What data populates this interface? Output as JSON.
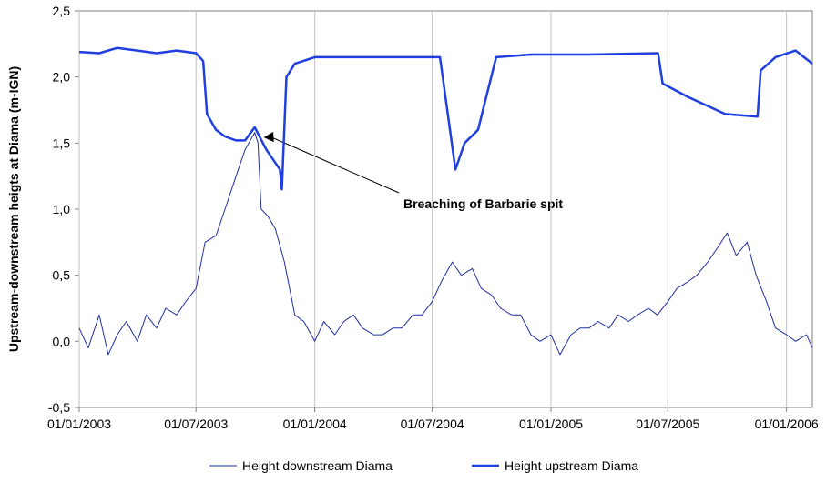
{
  "chart_data": {
    "type": "line",
    "y_label": "Upstream-downstream heigts at Diama (m-IGN)",
    "annotation": "Breaching of Barbarie spit",
    "xlim": [
      "2003-01-01",
      "2006-02-10"
    ],
    "xticks": [
      {
        "value": "2003-01-01",
        "label": "01/01/2003"
      },
      {
        "value": "2003-07-01",
        "label": "01/07/2003"
      },
      {
        "value": "2004-01-01",
        "label": "01/01/2004"
      },
      {
        "value": "2004-07-01",
        "label": "01/07/2004"
      },
      {
        "value": "2005-01-01",
        "label": "01/01/2005"
      },
      {
        "value": "2005-07-01",
        "label": "01/07/2005"
      },
      {
        "value": "2006-01-01",
        "label": "01/01/2006"
      }
    ],
    "ylim": [
      -0.5,
      2.5
    ],
    "yticks": [
      {
        "value": -0.5,
        "label": "-0,5"
      },
      {
        "value": 0,
        "label": "0,0"
      },
      {
        "value": 0.5,
        "label": "0,5"
      },
      {
        "value": 1,
        "label": "1,0"
      },
      {
        "value": 1.5,
        "label": "1,5"
      },
      {
        "value": 2,
        "label": "2,0"
      },
      {
        "value": 2.5,
        "label": "2,5"
      }
    ],
    "grid": true,
    "series": [
      {
        "name": "Height downstream Diama",
        "color": "#1f2fa0",
        "width": 1,
        "x": [
          "2003-01-01",
          "2003-01-15",
          "2003-02-01",
          "2003-02-15",
          "2003-03-01",
          "2003-03-15",
          "2003-04-01",
          "2003-04-15",
          "2003-05-01",
          "2003-05-15",
          "2003-06-01",
          "2003-06-15",
          "2003-07-01",
          "2003-07-15",
          "2003-08-01",
          "2003-08-15",
          "2003-09-01",
          "2003-09-15",
          "2003-09-30",
          "2003-10-05",
          "2003-10-10",
          "2003-10-20",
          "2003-11-01",
          "2003-11-15",
          "2003-12-01",
          "2003-12-15",
          "2004-01-01",
          "2004-01-15",
          "2004-02-01",
          "2004-02-15",
          "2004-03-01",
          "2004-03-15",
          "2004-04-01",
          "2004-04-15",
          "2004-05-01",
          "2004-05-15",
          "2004-06-01",
          "2004-06-15",
          "2004-07-01",
          "2004-07-15",
          "2004-08-01",
          "2004-08-15",
          "2004-09-01",
          "2004-09-15",
          "2004-10-01",
          "2004-10-15",
          "2004-11-01",
          "2004-11-15",
          "2004-12-01",
          "2004-12-15",
          "2005-01-01",
          "2005-01-15",
          "2005-02-01",
          "2005-02-15",
          "2005-03-01",
          "2005-03-15",
          "2005-04-01",
          "2005-04-15",
          "2005-05-01",
          "2005-05-15",
          "2005-06-01",
          "2005-06-15",
          "2005-07-01",
          "2005-07-15",
          "2005-08-01",
          "2005-08-15",
          "2005-09-01",
          "2005-09-15",
          "2005-10-01",
          "2005-10-15",
          "2005-11-01",
          "2005-11-15",
          "2005-12-01",
          "2005-12-15",
          "2006-01-01",
          "2006-01-15",
          "2006-02-01",
          "2006-02-10"
        ],
        "values": [
          0.1,
          -0.05,
          0.2,
          -0.1,
          0.05,
          0.15,
          0.0,
          0.2,
          0.1,
          0.25,
          0.2,
          0.3,
          0.4,
          0.75,
          0.8,
          1.0,
          1.25,
          1.45,
          1.58,
          1.5,
          1.0,
          0.95,
          0.85,
          0.6,
          0.2,
          0.15,
          0.0,
          0.15,
          0.05,
          0.15,
          0.2,
          0.1,
          0.05,
          0.05,
          0.1,
          0.1,
          0.2,
          0.2,
          0.3,
          0.45,
          0.6,
          0.5,
          0.55,
          0.4,
          0.35,
          0.25,
          0.2,
          0.2,
          0.05,
          0.0,
          0.05,
          -0.1,
          0.05,
          0.1,
          0.1,
          0.15,
          0.1,
          0.2,
          0.15,
          0.2,
          0.25,
          0.2,
          0.3,
          0.4,
          0.45,
          0.5,
          0.6,
          0.7,
          0.82,
          0.65,
          0.75,
          0.5,
          0.3,
          0.1,
          0.05,
          0.0,
          0.05,
          -0.05
        ]
      },
      {
        "name": "Height upstream Diama",
        "color": "#1f3fe0",
        "width": 2.5,
        "x": [
          "2003-01-01",
          "2003-02-01",
          "2003-03-01",
          "2003-04-01",
          "2003-05-01",
          "2003-06-01",
          "2003-07-01",
          "2003-07-12",
          "2003-07-18",
          "2003-08-01",
          "2003-08-15",
          "2003-09-01",
          "2003-09-15",
          "2003-09-30",
          "2003-10-18",
          "2003-11-08",
          "2003-11-11",
          "2003-11-18",
          "2003-12-01",
          "2004-01-01",
          "2004-03-01",
          "2004-05-01",
          "2004-07-13",
          "2004-08-06",
          "2004-08-20",
          "2004-09-10",
          "2004-10-08",
          "2004-12-01",
          "2005-03-01",
          "2005-06-16",
          "2005-06-23",
          "2005-08-01",
          "2005-09-28",
          "2005-11-17",
          "2005-11-22",
          "2005-12-15",
          "2006-01-15",
          "2006-02-10"
        ],
        "values": [
          2.19,
          2.18,
          2.22,
          2.2,
          2.18,
          2.2,
          2.18,
          2.12,
          1.72,
          1.6,
          1.55,
          1.52,
          1.52,
          1.62,
          1.45,
          1.3,
          1.15,
          2.0,
          2.1,
          2.15,
          2.15,
          2.15,
          2.15,
          1.3,
          1.5,
          1.6,
          2.15,
          2.17,
          2.17,
          2.18,
          1.95,
          1.85,
          1.72,
          1.7,
          2.05,
          2.15,
          2.2,
          2.1
        ]
      }
    ]
  }
}
